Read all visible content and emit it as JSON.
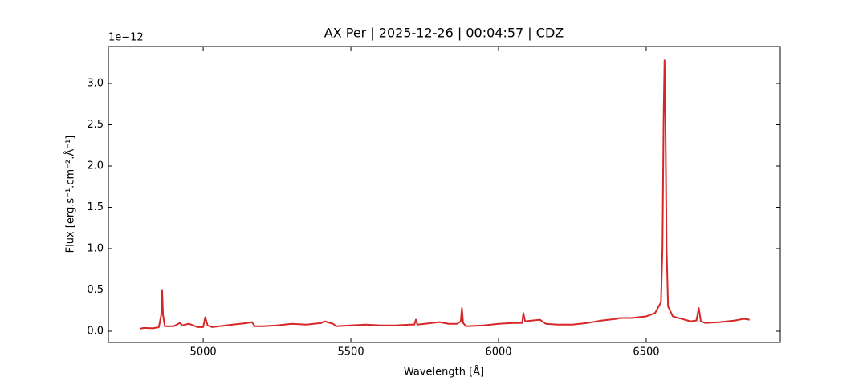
{
  "chart_data": {
    "type": "line",
    "title": "AX Per | 2025-12-26 | 00:04:57 | CDZ",
    "x_label": "Wavelength [Å]",
    "y_label": "Flux [erg.s⁻¹.cm⁻².Å⁻¹]",
    "y_offset_label": "1e−12",
    "xlim": [
      4679,
      6954
    ],
    "ylim": [
      -0.136,
      3.447
    ],
    "xticks": [
      5000,
      5500,
      6000,
      6500
    ],
    "yticks": [
      {
        "value": 0,
        "label": "0.0"
      },
      {
        "value": 0.5,
        "label": "0.5"
      },
      {
        "value": 1,
        "label": "1.0"
      },
      {
        "value": 1.5,
        "label": "1.5"
      },
      {
        "value": 2,
        "label": "2.0"
      },
      {
        "value": 2.5,
        "label": "2.5"
      },
      {
        "value": 3,
        "label": "3.0"
      }
    ],
    "x": [
      4785,
      4800,
      4830,
      4850,
      4858,
      4861,
      4864,
      4870,
      4900,
      4921,
      4930,
      4950,
      4960,
      4980,
      5000,
      5007,
      5015,
      5030,
      5100,
      5150,
      5165,
      5175,
      5200,
      5250,
      5300,
      5350,
      5400,
      5411,
      5440,
      5450,
      5500,
      5550,
      5600,
      5650,
      5700,
      5715,
      5720,
      5725,
      5750,
      5800,
      5830,
      5860,
      5872,
      5876,
      5880,
      5890,
      5950,
      6000,
      6050,
      6080,
      6084,
      6090,
      6140,
      6160,
      6200,
      6250,
      6300,
      6350,
      6400,
      6410,
      6450,
      6500,
      6530,
      6550,
      6555,
      6559,
      6562,
      6565,
      6569,
      6574,
      6590,
      6620,
      6650,
      6670,
      6678,
      6685,
      6700,
      6750,
      6800,
      6830,
      6850
    ],
    "series": [
      {
        "color": "#d62728",
        "values": [
          0.03,
          0.04,
          0.035,
          0.05,
          0.2,
          0.5,
          0.2,
          0.06,
          0.06,
          0.1,
          0.07,
          0.09,
          0.08,
          0.05,
          0.05,
          0.17,
          0.07,
          0.05,
          0.08,
          0.1,
          0.11,
          0.06,
          0.06,
          0.07,
          0.09,
          0.08,
          0.1,
          0.12,
          0.09,
          0.06,
          0.07,
          0.08,
          0.07,
          0.07,
          0.08,
          0.08,
          0.14,
          0.08,
          0.09,
          0.11,
          0.09,
          0.09,
          0.12,
          0.28,
          0.1,
          0.06,
          0.07,
          0.09,
          0.1,
          0.1,
          0.22,
          0.12,
          0.14,
          0.09,
          0.08,
          0.08,
          0.1,
          0.13,
          0.15,
          0.16,
          0.16,
          0.18,
          0.22,
          0.35,
          1.0,
          2.6,
          3.28,
          2.6,
          1.0,
          0.3,
          0.18,
          0.15,
          0.12,
          0.13,
          0.28,
          0.12,
          0.1,
          0.11,
          0.13,
          0.15,
          0.14
        ]
      }
    ]
  }
}
